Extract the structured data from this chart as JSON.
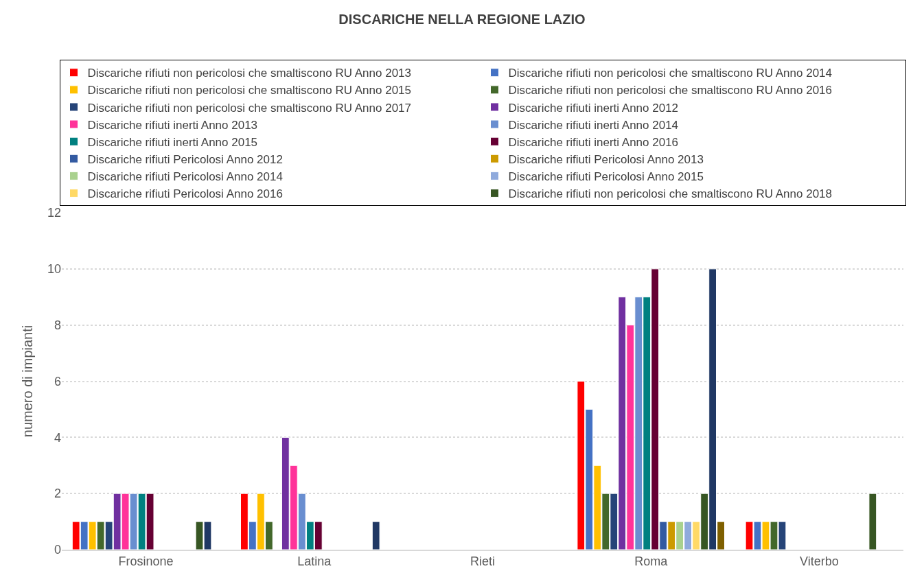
{
  "chart_data": {
    "type": "bar",
    "title": "DISCARICHE NELLA REGIONE LAZIO",
    "ylabel": "numero di impianti",
    "categories": [
      "Frosinone",
      "Latina",
      "Rieti",
      "Roma",
      "Viterbo"
    ],
    "ylim": [
      0,
      12
    ],
    "yticks": [
      0,
      2,
      4,
      6,
      8,
      10,
      12
    ],
    "grid": "y",
    "legend": "top",
    "series": [
      {
        "name": "Discariche rifiuti non pericolosi che smaltiscono RU Anno 2013",
        "color": "#ff0000",
        "values": [
          1,
          2,
          null,
          6,
          1
        ]
      },
      {
        "name": "Discariche rifiuti non pericolosi che smaltiscono RU Anno 2014",
        "color": "#4472c4",
        "values": [
          1,
          1,
          null,
          5,
          1
        ]
      },
      {
        "name": "Discariche rifiuti non pericolosi che smaltiscono RU Anno 2015",
        "color": "#ffc000",
        "values": [
          1,
          2,
          null,
          3,
          1
        ]
      },
      {
        "name": "Discariche rifiuti non pericolosi che smaltiscono RU Anno 2016",
        "color": "#43682b",
        "values": [
          1,
          1,
          null,
          2,
          1
        ]
      },
      {
        "name": "Discariche rifiuti non pericolosi che smaltiscono RU Anno 2017",
        "color": "#264478",
        "values": [
          1,
          null,
          null,
          2,
          1
        ]
      },
      {
        "name": "Discariche rifiuti inerti Anno 2012",
        "color": "#7030a0",
        "values": [
          2,
          4,
          null,
          9,
          null
        ]
      },
      {
        "name": "Discariche rifiuti inerti Anno 2013",
        "color": "#ff3399",
        "values": [
          2,
          3,
          null,
          8,
          null
        ]
      },
      {
        "name": "Discariche rifiuti inerti Anno 2014",
        "color": "#698ed0",
        "values": [
          2,
          2,
          null,
          9,
          null
        ]
      },
      {
        "name": "Discariche rifiuti inerti Anno 2015",
        "color": "#008080",
        "values": [
          2,
          1,
          null,
          9,
          null
        ]
      },
      {
        "name": "Discariche rifiuti inerti Anno 2016",
        "color": "#660033",
        "values": [
          2,
          1,
          null,
          10,
          null
        ]
      },
      {
        "name": "Discariche rifiuti Pericolosi Anno 2012",
        "color": "#335aa1",
        "values": [
          null,
          null,
          null,
          1,
          null
        ]
      },
      {
        "name": "Discariche rifiuti Pericolosi Anno 2013",
        "color": "#cc9a00",
        "values": [
          null,
          null,
          null,
          1,
          null
        ]
      },
      {
        "name": "Discariche rifiuti Pericolosi Anno 2014",
        "color": "#a9d18e",
        "values": [
          null,
          null,
          null,
          1,
          null
        ]
      },
      {
        "name": "Discariche rifiuti Pericolosi Anno 2015",
        "color": "#8faadc",
        "values": [
          null,
          null,
          null,
          1,
          null
        ]
      },
      {
        "name": "Discariche rifiuti Pericolosi Anno 2016",
        "color": "#ffd966",
        "values": [
          null,
          null,
          null,
          1,
          null
        ]
      },
      {
        "name": "Discariche rifiuti non pericolosi che smaltiscono RU Anno 2018",
        "color": "#375623",
        "values": [
          1,
          null,
          null,
          2,
          2
        ]
      },
      {
        "color": "#203864",
        "values": [
          1,
          1,
          null,
          10,
          null
        ]
      },
      {
        "color": "#7f6000",
        "values": [
          null,
          null,
          null,
          1,
          null
        ]
      }
    ]
  }
}
